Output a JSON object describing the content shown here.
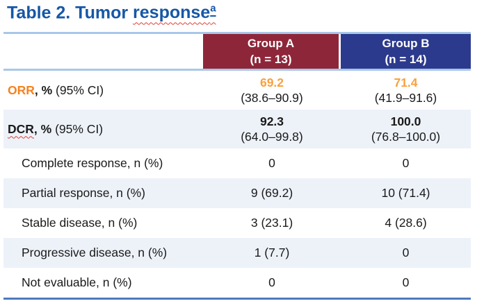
{
  "title": {
    "prefix": "Table 2. Tumor ",
    "highlight_word": "response",
    "superscript": "a"
  },
  "header": {
    "group_a": {
      "name": "Group A",
      "n": "(n = 13)"
    },
    "group_b": {
      "name": "Group B",
      "n": "(n = 14)"
    }
  },
  "rows": {
    "orr": {
      "abbr": "ORR",
      "bold_suffix": ", %",
      "rest": " (95% CI)",
      "a_value": "69.2",
      "a_ci": "(38.6–90.9)",
      "b_value": "71.4",
      "b_ci": "(41.9–91.6)"
    },
    "dcr": {
      "abbr": "DCR",
      "bold_suffix": ", %",
      "rest": " (95% CI)",
      "a_value": "92.3",
      "a_ci": "(64.0–99.8)",
      "b_value": "100.0",
      "b_ci": "(76.8–100.0)"
    },
    "complete_response": {
      "label": "Complete response, n (%)",
      "a": "0",
      "b": "0"
    },
    "partial_response": {
      "label": "Partial response, n (%)",
      "a": "9 (69.2)",
      "b": "10 (71.4)"
    },
    "stable_disease": {
      "label": "Stable disease, n (%)",
      "a": "3 (23.1)",
      "b": "4 (28.6)"
    },
    "progressive_disease": {
      "label": "Progressive disease, n (%)",
      "a": "1 (7.7)",
      "b": "0"
    },
    "not_evaluable": {
      "label": "Not evaluable, n (%)",
      "a": "0",
      "b": "0"
    }
  },
  "colors": {
    "title_blue": "#1757A6",
    "group_a_bg": "#8E2639",
    "group_b_bg": "#2C3A8D",
    "row_alt_bg": "#EDF2F9",
    "header_line": "#A9C7E8",
    "bottom_line": "#4C78C0",
    "accent_orange": "#F5821F",
    "accent_orange_value": "#F9A03C",
    "squiggle_red": "#E03C31"
  }
}
